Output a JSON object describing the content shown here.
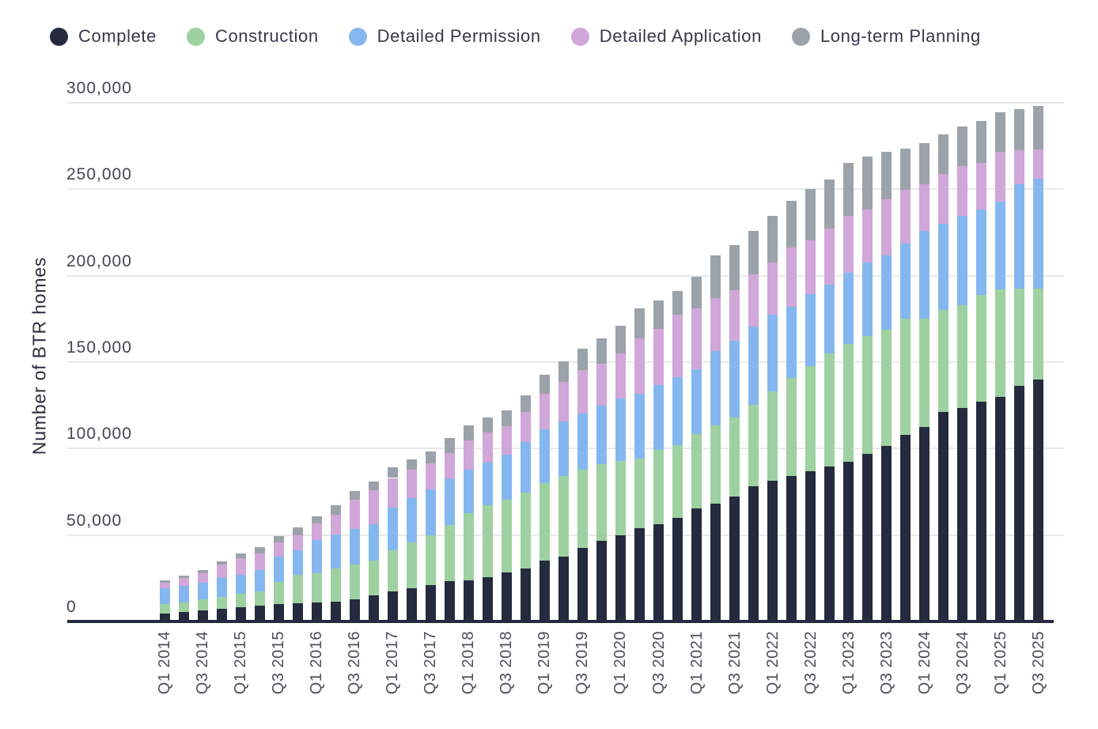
{
  "legend": {
    "items": [
      {
        "label": "Complete",
        "color": "#262a3f"
      },
      {
        "label": "Construction",
        "color": "#9ed1a1"
      },
      {
        "label": "Detailed Permission",
        "color": "#84b7ef"
      },
      {
        "label": "Detailed Application",
        "color": "#d1a6d8"
      },
      {
        "label": "Long-term Planning",
        "color": "#9ca2a9"
      }
    ]
  },
  "y_axis": {
    "title": "Number of BTR homes",
    "tick_labels": [
      "0",
      "50,000",
      "100,000",
      "150,000",
      "200,000",
      "250,000",
      "300,000"
    ],
    "tick_values": [
      0,
      50000,
      100000,
      150000,
      200000,
      250000,
      300000
    ]
  },
  "colors": {
    "gridline": "#e9e9eb",
    "axis_line": "#262a3f",
    "tick_text": "#41464f",
    "x_label_text": "#4a4f58",
    "background": "#ffffff"
  },
  "chart_data": {
    "type": "bar",
    "stacked": true,
    "title": "",
    "xlabel": "",
    "ylabel": "Number of BTR homes",
    "ylim": [
      0,
      300000
    ],
    "grid": true,
    "legend_position": "top",
    "x_tick_step": 2,
    "categories": [
      "Q1 2014",
      "Q2 2014",
      "Q3 2014",
      "Q4 2014",
      "Q1 2015",
      "Q2 2015",
      "Q3 2015",
      "Q4 2015",
      "Q1 2016",
      "Q2 2016",
      "Q3 2016",
      "Q4 2016",
      "Q1 2017",
      "Q2 2017",
      "Q3 2017",
      "Q4 2017",
      "Q1 2018",
      "Q2 2018",
      "Q3 2018",
      "Q4 2018",
      "Q1 2019",
      "Q2 2019",
      "Q3 2019",
      "Q4 2019",
      "Q1 2020",
      "Q2 2020",
      "Q3 2020",
      "Q4 2020",
      "Q1 2021",
      "Q2 2021",
      "Q3 2021",
      "Q4 2021",
      "Q1 2022",
      "Q2 2022",
      "Q3 2022",
      "Q4 2022",
      "Q1 2023",
      "Q2 2023",
      "Q3 2023",
      "Q4 2023",
      "Q1 2024",
      "Q2 2024",
      "Q3 2024",
      "Q4 2024",
      "Q1 2025",
      "Q2 2025",
      "Q3 2025"
    ],
    "series": [
      {
        "name": "Complete",
        "color": "#262a3f",
        "values": [
          4600,
          5600,
          6600,
          7500,
          8400,
          9200,
          9900,
          10500,
          11000,
          11600,
          12800,
          15000,
          17400,
          19400,
          20900,
          23300,
          23900,
          25500,
          28200,
          30800,
          35300,
          37600,
          42400,
          46700,
          49800,
          53800,
          56400,
          59900,
          65300,
          68300,
          72100,
          78200,
          81300,
          84300,
          86900,
          89700,
          92300,
          96800,
          101400,
          108000,
          112500,
          121200,
          123500,
          127000,
          130000,
          136500,
          140000
        ]
      },
      {
        "name": "Construction",
        "color": "#9ed1a1",
        "values": [
          5400,
          5500,
          6000,
          6600,
          7700,
          8400,
          13100,
          16500,
          16700,
          18900,
          20300,
          20100,
          23600,
          26500,
          28800,
          32500,
          38700,
          41600,
          42000,
          43700,
          44700,
          46400,
          45600,
          44300,
          42900,
          40400,
          42700,
          42000,
          43000,
          45000,
          45800,
          47300,
          51800,
          56700,
          60700,
          65500,
          68300,
          68300,
          67500,
          67000,
          62500,
          59100,
          59400,
          61800,
          62100,
          56100,
          52600
        ]
      },
      {
        "name": "Detailed Permission",
        "color": "#84b7ef",
        "values": [
          9100,
          9500,
          9800,
          11100,
          10900,
          12100,
          14500,
          14000,
          19300,
          20000,
          20400,
          21100,
          24900,
          25300,
          26800,
          27200,
          25000,
          25000,
          26500,
          29500,
          31300,
          31600,
          32200,
          33700,
          36100,
          37400,
          37800,
          39600,
          37800,
          43100,
          44500,
          45000,
          44200,
          40900,
          41900,
          39700,
          41100,
          42400,
          42700,
          43500,
          51100,
          49900,
          51900,
          49500,
          50800,
          60500,
          63500
        ]
      },
      {
        "name": "Detailed Application",
        "color": "#d1a6d8",
        "values": [
          3300,
          4600,
          5300,
          7500,
          9800,
          9700,
          8400,
          9000,
          9500,
          11300,
          17000,
          19700,
          17100,
          16400,
          14900,
          14400,
          16900,
          17000,
          16400,
          17000,
          20300,
          22900,
          25100,
          24400,
          26400,
          32000,
          32500,
          35800,
          35000,
          30800,
          29400,
          30200,
          30500,
          34300,
          30800,
          32300,
          33100,
          30800,
          32800,
          31200,
          26700,
          28700,
          28700,
          27000,
          28900,
          19500,
          16800
        ]
      },
      {
        "name": "Long-term Planning",
        "color": "#9ca2a9",
        "values": [
          1600,
          1500,
          2000,
          2200,
          2600,
          3600,
          3500,
          4300,
          4500,
          5600,
          4900,
          4900,
          6100,
          6000,
          6800,
          8700,
          8800,
          9100,
          9000,
          10000,
          11100,
          12100,
          12600,
          14800,
          16000,
          17500,
          16300,
          13700,
          18300,
          24700,
          25900,
          25100,
          27000,
          27000,
          29800,
          28600,
          30500,
          30500,
          27100,
          23700,
          24100,
          22800,
          22800,
          24100,
          22900,
          23600,
          25100
        ]
      }
    ]
  }
}
